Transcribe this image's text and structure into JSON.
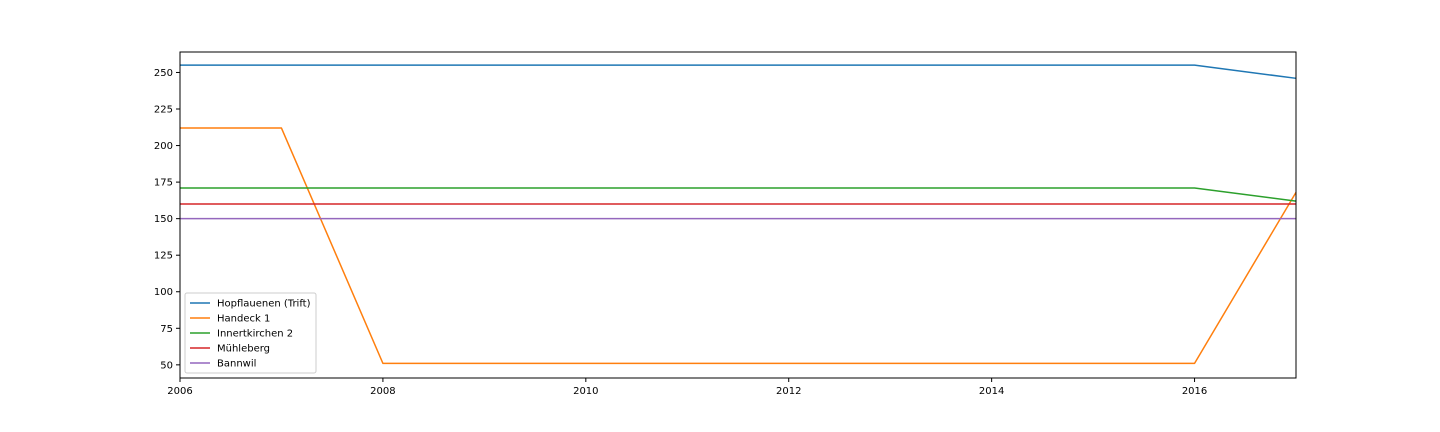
{
  "chart_data": {
    "type": "line",
    "title": "",
    "xlabel": "",
    "ylabel": "",
    "x": [
      2006,
      2007,
      2008,
      2009,
      2010,
      2011,
      2012,
      2013,
      2014,
      2015,
      2016,
      2017
    ],
    "xlim": [
      2006,
      2017
    ],
    "ylim": [
      41,
      264
    ],
    "xticks": [
      2006,
      2008,
      2010,
      2012,
      2014,
      2016
    ],
    "yticks": [
      50,
      75,
      100,
      125,
      150,
      175,
      200,
      225,
      250
    ],
    "grid": false,
    "legend_position": "lower-left",
    "series": [
      {
        "name": "Hopflauenen (Trift)",
        "color": "#1f77b4",
        "values": [
          255,
          255,
          255,
          255,
          255,
          255,
          255,
          255,
          255,
          255,
          255,
          246
        ]
      },
      {
        "name": "Handeck 1",
        "color": "#ff7f0e",
        "values": [
          212,
          212,
          51,
          51,
          51,
          51,
          51,
          51,
          51,
          51,
          51,
          168
        ]
      },
      {
        "name": "Innertkirchen 2",
        "color": "#2ca02c",
        "values": [
          171,
          171,
          171,
          171,
          171,
          171,
          171,
          171,
          171,
          171,
          171,
          162
        ]
      },
      {
        "name": "Mühleberg",
        "color": "#d62728",
        "values": [
          160,
          160,
          160,
          160,
          160,
          160,
          160,
          160,
          160,
          160,
          160,
          160
        ]
      },
      {
        "name": "Bannwil",
        "color": "#9467bd",
        "values": [
          150,
          150,
          150,
          150,
          150,
          150,
          150,
          150,
          150,
          150,
          150,
          150
        ]
      }
    ]
  }
}
